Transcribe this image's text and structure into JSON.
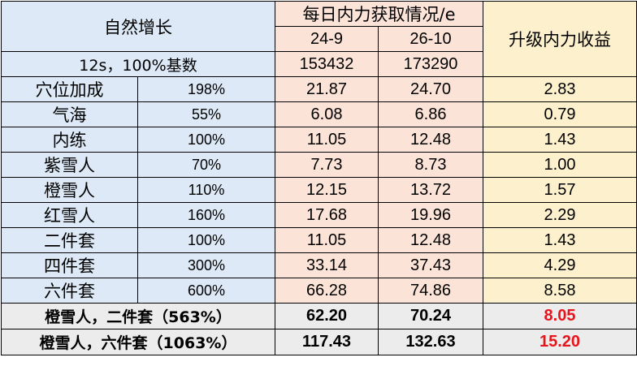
{
  "header": {
    "natural_growth": "自然增长",
    "daily_title": "每日内力获取情况/e",
    "col1": "24-9",
    "col2": "26-10",
    "upgrade": "升级内力收益",
    "base_label": "12s，100%基数",
    "base_col1": "153432",
    "base_col2": "173290"
  },
  "rows": [
    {
      "name": "穴位加成",
      "pct": "198%",
      "v1": "21.87",
      "v2": "24.70",
      "gain": "2.83"
    },
    {
      "name": "气海",
      "pct": "55%",
      "v1": "6.08",
      "v2": "6.86",
      "gain": "0.79"
    },
    {
      "name": "内练",
      "pct": "100%",
      "v1": "11.05",
      "v2": "12.48",
      "gain": "1.43"
    },
    {
      "name": "紫雪人",
      "pct": "70%",
      "v1": "7.73",
      "v2": "8.73",
      "gain": "1.00"
    },
    {
      "name": "橙雪人",
      "pct": "110%",
      "v1": "12.15",
      "v2": "13.72",
      "gain": "1.57"
    },
    {
      "name": "红雪人",
      "pct": "160%",
      "v1": "17.68",
      "v2": "19.96",
      "gain": "2.29"
    },
    {
      "name": "二件套",
      "pct": "100%",
      "v1": "11.05",
      "v2": "12.48",
      "gain": "1.43"
    },
    {
      "name": "四件套",
      "pct": "300%",
      "v1": "33.14",
      "v2": "37.43",
      "gain": "4.29"
    },
    {
      "name": "六件套",
      "pct": "600%",
      "v1": "66.28",
      "v2": "74.86",
      "gain": "8.58"
    }
  ],
  "summary": [
    {
      "label": "橙雪人，二件套（563%）",
      "v1": "62.20",
      "v2": "70.24",
      "gain": "8.05"
    },
    {
      "label": "橙雪人，六件套（1063%）",
      "v1": "117.43",
      "v2": "132.63",
      "gain": "15.20"
    }
  ],
  "colors": {
    "blue": "#dde9f6",
    "pink": "#fbe3d7",
    "yellow": "#fdf0cc",
    "grey": "#ececec",
    "red": "#e8141b"
  }
}
